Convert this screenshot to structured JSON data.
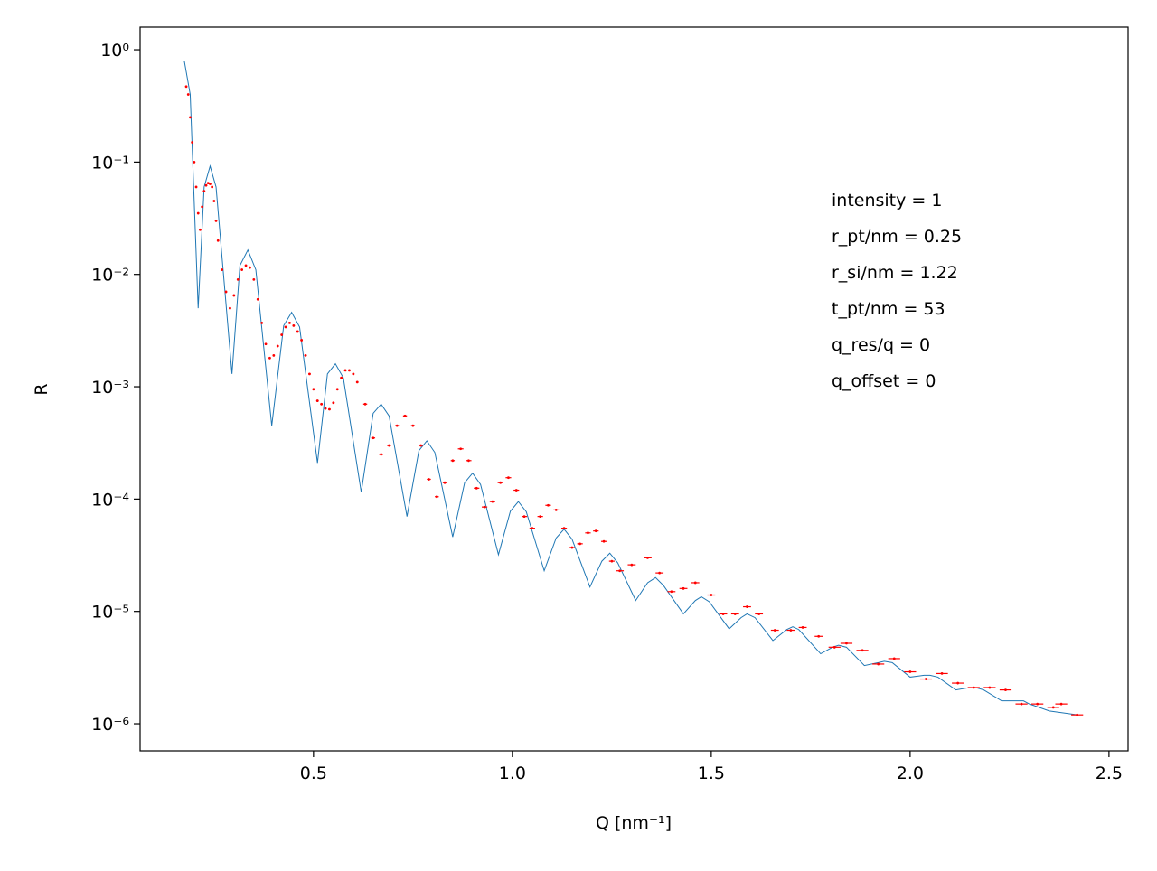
{
  "chart_data": {
    "type": "line",
    "xlabel": "Q [nm⁻¹]",
    "ylabel": "R",
    "annotation": [
      "intensity = 1",
      "r_pt/nm = 0.25",
      "r_si/nm = 1.22",
      "t_pt/nm = 53",
      "q_res/q = 0",
      "q_offset = 0"
    ],
    "xlim": [
      0.064,
      2.548
    ],
    "xticks": [
      0.5,
      1.0,
      1.5,
      2.0,
      2.5
    ],
    "ylim": [
      5.74e-07,
      1.59
    ],
    "log_y": true,
    "yticks": [
      {
        "value": 1,
        "label": "10⁰"
      },
      {
        "value": 0.1,
        "label": "10⁻¹"
      },
      {
        "value": 0.01,
        "label": "10⁻²"
      },
      {
        "value": 0.001,
        "label": "10⁻³"
      },
      {
        "value": 0.0001,
        "label": "10⁻⁴"
      },
      {
        "value": 1e-05,
        "label": "10⁻⁵"
      },
      {
        "value": 1e-06,
        "label": "10⁻⁶"
      }
    ],
    "series": [
      {
        "type": "line",
        "color": "#1f77b4",
        "x": [
          0.175,
          0.19,
          0.21,
          0.225,
          0.24,
          0.255,
          0.295,
          0.315,
          0.335,
          0.355,
          0.395,
          0.425,
          0.445,
          0.465,
          0.51,
          0.535,
          0.555,
          0.575,
          0.62,
          0.65,
          0.67,
          0.69,
          0.735,
          0.765,
          0.785,
          0.805,
          0.85,
          0.88,
          0.9,
          0.92,
          0.965,
          0.995,
          1.015,
          1.035,
          1.08,
          1.11,
          1.13,
          1.15,
          1.195,
          1.225,
          1.245,
          1.265,
          1.31,
          1.34,
          1.36,
          1.38,
          1.43,
          1.46,
          1.475,
          1.495,
          1.545,
          1.575,
          1.59,
          1.61,
          1.655,
          1.69,
          1.705,
          1.72,
          1.775,
          1.805,
          1.82,
          1.84,
          1.885,
          1.92,
          1.935,
          1.955,
          2.0,
          2.035,
          2.05,
          2.07,
          2.115,
          2.15,
          2.165,
          2.185,
          2.23,
          2.265,
          2.285,
          2.3,
          2.35,
          2.42
        ],
        "values": [
          0.8,
          0.4,
          0.005,
          0.06,
          0.092,
          0.06,
          0.0013,
          0.012,
          0.0165,
          0.011,
          0.00045,
          0.0035,
          0.0046,
          0.0034,
          0.00021,
          0.0013,
          0.0016,
          0.0012,
          0.000115,
          0.00058,
          0.0007,
          0.00055,
          7e-05,
          0.00027,
          0.00033,
          0.00026,
          4.6e-05,
          0.00014,
          0.00017,
          0.000135,
          3.2e-05,
          7.8e-05,
          9.5e-05,
          7.7e-05,
          2.3e-05,
          4.5e-05,
          5.4e-05,
          4.4e-05,
          1.65e-05,
          2.8e-05,
          3.3e-05,
          2.7e-05,
          1.25e-05,
          1.8e-05,
          2e-05,
          1.7e-05,
          9.5e-06,
          1.25e-05,
          1.35e-05,
          1.22e-05,
          7e-06,
          8.8e-06,
          9.5e-06,
          8.8e-06,
          5.5e-06,
          6.9e-06,
          7.3e-06,
          6.9e-06,
          4.2e-06,
          4.8e-06,
          5e-06,
          4.8e-06,
          3.3e-06,
          3.5e-06,
          3.6e-06,
          3.5e-06,
          2.6e-06,
          2.7e-06,
          2.7e-06,
          2.6e-06,
          2e-06,
          2.1e-06,
          2.1e-06,
          2e-06,
          1.6e-06,
          1.6e-06,
          1.6e-06,
          1.5e-06,
          1.3e-06,
          1.2e-06
        ]
      },
      {
        "type": "errorbar",
        "color": "#ff0000",
        "x": [
          0.18,
          0.185,
          0.19,
          0.195,
          0.2,
          0.205,
          0.21,
          0.215,
          0.22,
          0.225,
          0.23,
          0.235,
          0.24,
          0.245,
          0.25,
          0.255,
          0.26,
          0.27,
          0.28,
          0.29,
          0.3,
          0.31,
          0.32,
          0.33,
          0.34,
          0.35,
          0.36,
          0.37,
          0.38,
          0.39,
          0.4,
          0.41,
          0.42,
          0.43,
          0.44,
          0.45,
          0.46,
          0.47,
          0.48,
          0.49,
          0.5,
          0.51,
          0.52,
          0.53,
          0.54,
          0.55,
          0.56,
          0.57,
          0.58,
          0.59,
          0.6,
          0.61,
          0.63,
          0.65,
          0.67,
          0.69,
          0.71,
          0.73,
          0.75,
          0.77,
          0.79,
          0.81,
          0.83,
          0.85,
          0.87,
          0.89,
          0.91,
          0.93,
          0.95,
          0.97,
          0.99,
          1.01,
          1.03,
          1.05,
          1.07,
          1.09,
          1.11,
          1.13,
          1.15,
          1.17,
          1.19,
          1.21,
          1.23,
          1.25,
          1.27,
          1.3,
          1.34,
          1.37,
          1.4,
          1.43,
          1.46,
          1.5,
          1.53,
          1.56,
          1.59,
          1.62,
          1.66,
          1.7,
          1.73,
          1.77,
          1.81,
          1.84,
          1.88,
          1.92,
          1.96,
          2.0,
          2.04,
          2.08,
          2.12,
          2.16,
          2.2,
          2.24,
          2.28,
          2.32,
          2.36,
          2.38,
          2.42
        ],
        "values": [
          0.47,
          0.4,
          0.25,
          0.15,
          0.1,
          0.06,
          0.035,
          0.025,
          0.04,
          0.055,
          0.062,
          0.065,
          0.064,
          0.06,
          0.045,
          0.03,
          0.02,
          0.011,
          0.007,
          0.005,
          0.0065,
          0.009,
          0.011,
          0.012,
          0.0115,
          0.009,
          0.006,
          0.0037,
          0.0024,
          0.0018,
          0.0019,
          0.0023,
          0.0029,
          0.0034,
          0.0037,
          0.0035,
          0.0031,
          0.0026,
          0.0019,
          0.0013,
          0.00095,
          0.00075,
          0.0007,
          0.00064,
          0.00063,
          0.00072,
          0.00095,
          0.0012,
          0.0014,
          0.0014,
          0.0013,
          0.0011,
          0.0007,
          0.00035,
          0.00025,
          0.0003,
          0.00045,
          0.00055,
          0.00045,
          0.0003,
          0.00015,
          0.000105,
          0.00014,
          0.00022,
          0.00028,
          0.00022,
          0.000125,
          8.5e-05,
          9.5e-05,
          0.00014,
          0.000155,
          0.00012,
          7e-05,
          5.5e-05,
          7e-05,
          8.8e-05,
          8e-05,
          5.5e-05,
          3.7e-05,
          4e-05,
          5e-05,
          5.2e-05,
          4.2e-05,
          2.8e-05,
          2.3e-05,
          2.6e-05,
          3e-05,
          2.2e-05,
          1.5e-05,
          1.6e-05,
          1.8e-05,
          1.4e-05,
          9.5e-06,
          9.5e-06,
          1.1e-05,
          9.5e-06,
          6.8e-06,
          6.8e-06,
          7.2e-06,
          6e-06,
          4.8e-06,
          5.2e-06,
          4.5e-06,
          3.4e-06,
          3.8e-06,
          2.9e-06,
          2.5e-06,
          2.8e-06,
          2.3e-06,
          2.1e-06,
          2.1e-06,
          2e-06,
          1.5e-06,
          1.5e-06,
          1.4e-06,
          1.5e-06,
          1.2e-06
        ],
        "xerr": [
          0.001,
          0.001,
          0.001,
          0.001,
          0.001,
          0.001,
          0.001,
          0.001,
          0.001,
          0.001,
          0.001,
          0.001,
          0.001,
          0.001,
          0.001,
          0.001,
          0.001,
          0.002,
          0.002,
          0.002,
          0.002,
          0.002,
          0.002,
          0.002,
          0.002,
          0.002,
          0.002,
          0.002,
          0.002,
          0.002,
          0.002,
          0.002,
          0.002,
          0.002,
          0.003,
          0.003,
          0.003,
          0.003,
          0.003,
          0.003,
          0.003,
          0.003,
          0.003,
          0.003,
          0.003,
          0.003,
          0.003,
          0.003,
          0.003,
          0.003,
          0.003,
          0.003,
          0.005,
          0.005,
          0.005,
          0.005,
          0.005,
          0.005,
          0.005,
          0.005,
          0.005,
          0.005,
          0.005,
          0.005,
          0.007,
          0.007,
          0.007,
          0.007,
          0.007,
          0.007,
          0.007,
          0.007,
          0.007,
          0.007,
          0.007,
          0.007,
          0.007,
          0.007,
          0.007,
          0.007,
          0.007,
          0.007,
          0.007,
          0.007,
          0.01,
          0.01,
          0.01,
          0.01,
          0.01,
          0.01,
          0.01,
          0.01,
          0.01,
          0.01,
          0.01,
          0.01,
          0.01,
          0.01,
          0.01,
          0.01,
          0.015,
          0.015,
          0.015,
          0.015,
          0.015,
          0.015,
          0.015,
          0.015,
          0.015,
          0.015,
          0.015,
          0.015,
          0.015,
          0.015,
          0.015,
          0.015,
          0.015
        ]
      }
    ]
  }
}
